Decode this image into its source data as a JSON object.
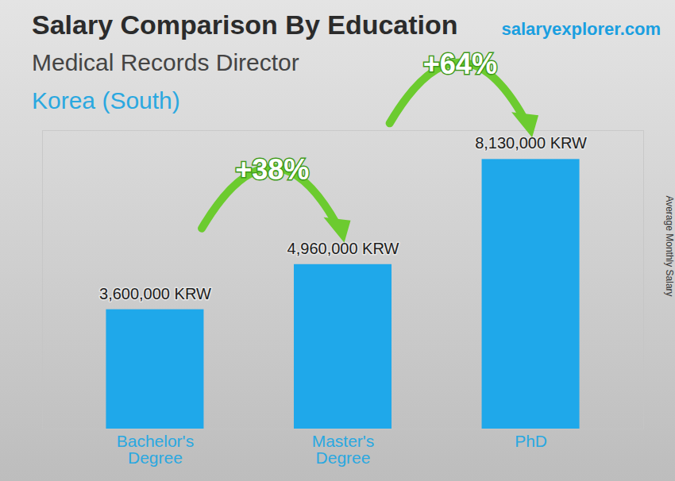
{
  "chart_data": {
    "type": "bar",
    "title": "Salary Comparison By Education",
    "subtitle": "Medical Records Director",
    "region": "Korea (South)",
    "source": "salaryexplorer.com",
    "y_label": "Average Monthly Salary",
    "categories": [
      "Bachelor's Degree",
      "Master's Degree",
      "PhD"
    ],
    "values": [
      3600000,
      4960000,
      8130000
    ],
    "value_labels": [
      "3,600,000 KRW",
      "4,960,000 KRW",
      "8,130,000 KRW"
    ],
    "color": "#1fa8ea",
    "ylim": [
      0,
      9000000
    ],
    "yticks": [],
    "tick_labels": "x",
    "data_labels": true,
    "annotations": [
      {
        "text": "+38%",
        "from": 0,
        "to": 1
      },
      {
        "text": "+64%",
        "from": 1,
        "to": 2
      }
    ]
  }
}
